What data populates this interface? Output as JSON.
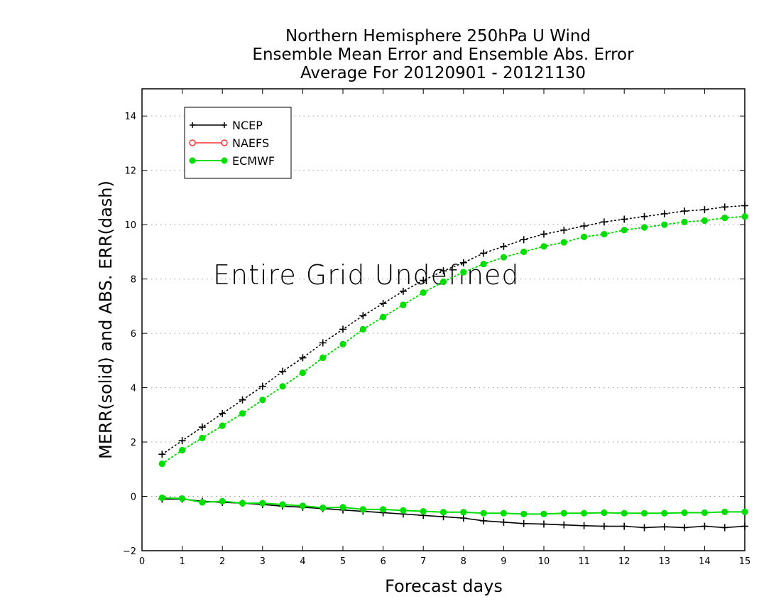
{
  "chart_data": {
    "type": "line",
    "title": [
      "Northern Hemisphere 250hPa U Wind",
      "Ensemble Mean Error and Ensemble Abs. Error",
      "Average For 20120901 - 20121130"
    ],
    "xlabel": "Forecast days",
    "ylabel": "MERR(solid) and ABS. ERR(dash)",
    "annotation": "Entire Grid Undefined",
    "xlim": [
      0,
      15
    ],
    "ylim": [
      -2,
      15
    ],
    "xticks": [
      "0",
      "1",
      "2",
      "3",
      "4",
      "5",
      "6",
      "7",
      "8",
      "9",
      "10",
      "11",
      "12",
      "13",
      "14",
      "15"
    ],
    "yticks": [
      "-2",
      "0",
      "2",
      "4",
      "6",
      "8",
      "10",
      "12",
      "14"
    ],
    "grid": "horizontal-dotted",
    "legend": {
      "placement": "top-left",
      "entries": [
        "NCEP",
        "NAEFS",
        "ECMWF"
      ]
    },
    "x": [
      0.5,
      1,
      1.5,
      2,
      2.5,
      3,
      3.5,
      4,
      4.5,
      5,
      5.5,
      6,
      6.5,
      7,
      7.5,
      8,
      8.5,
      9,
      9.5,
      10,
      10.5,
      11,
      11.5,
      12,
      12.5,
      13,
      13.5,
      14,
      14.5,
      15
    ],
    "series": [
      {
        "name": "NCEP",
        "kind": "abs_err",
        "style": "dash",
        "marker": "plus",
        "color": "#000000",
        "values": [
          1.55,
          2.05,
          2.55,
          3.05,
          3.55,
          4.05,
          4.6,
          5.1,
          5.65,
          6.15,
          6.65,
          7.1,
          7.55,
          7.95,
          8.3,
          8.6,
          8.95,
          9.2,
          9.45,
          9.65,
          9.8,
          9.95,
          10.1,
          10.2,
          10.3,
          10.4,
          10.5,
          10.55,
          10.65,
          10.7
        ]
      },
      {
        "name": "ECMWF",
        "kind": "abs_err",
        "style": "dash",
        "marker": "circle",
        "color": "#00dd00",
        "values": [
          1.2,
          1.7,
          2.15,
          2.6,
          3.05,
          3.55,
          4.05,
          4.55,
          5.1,
          5.6,
          6.15,
          6.6,
          7.05,
          7.5,
          7.9,
          8.25,
          8.55,
          8.8,
          9.0,
          9.2,
          9.35,
          9.55,
          9.65,
          9.8,
          9.9,
          10.0,
          10.1,
          10.15,
          10.25,
          10.3
        ]
      },
      {
        "name": "NCEP",
        "kind": "mean_err",
        "style": "solid",
        "marker": "plus",
        "color": "#000000",
        "values": [
          -0.1,
          -0.1,
          -0.18,
          -0.22,
          -0.25,
          -0.3,
          -0.36,
          -0.4,
          -0.45,
          -0.5,
          -0.55,
          -0.6,
          -0.65,
          -0.7,
          -0.75,
          -0.8,
          -0.9,
          -0.95,
          -1.0,
          -1.02,
          -1.05,
          -1.08,
          -1.1,
          -1.1,
          -1.15,
          -1.12,
          -1.15,
          -1.1,
          -1.15,
          -1.1
        ]
      },
      {
        "name": "ECMWF",
        "kind": "mean_err",
        "style": "solid",
        "marker": "circle",
        "color": "#00dd00",
        "values": [
          -0.05,
          -0.08,
          -0.22,
          -0.18,
          -0.25,
          -0.25,
          -0.3,
          -0.35,
          -0.42,
          -0.4,
          -0.48,
          -0.48,
          -0.52,
          -0.55,
          -0.58,
          -0.58,
          -0.62,
          -0.62,
          -0.65,
          -0.65,
          -0.62,
          -0.62,
          -0.6,
          -0.62,
          -0.62,
          -0.62,
          -0.6,
          -0.6,
          -0.57,
          -0.57
        ]
      }
    ],
    "colors": {
      "ncep": "#000000",
      "naefs": "#ff3333",
      "ecmwf": "#00dd00",
      "grid": "#999999"
    }
  }
}
